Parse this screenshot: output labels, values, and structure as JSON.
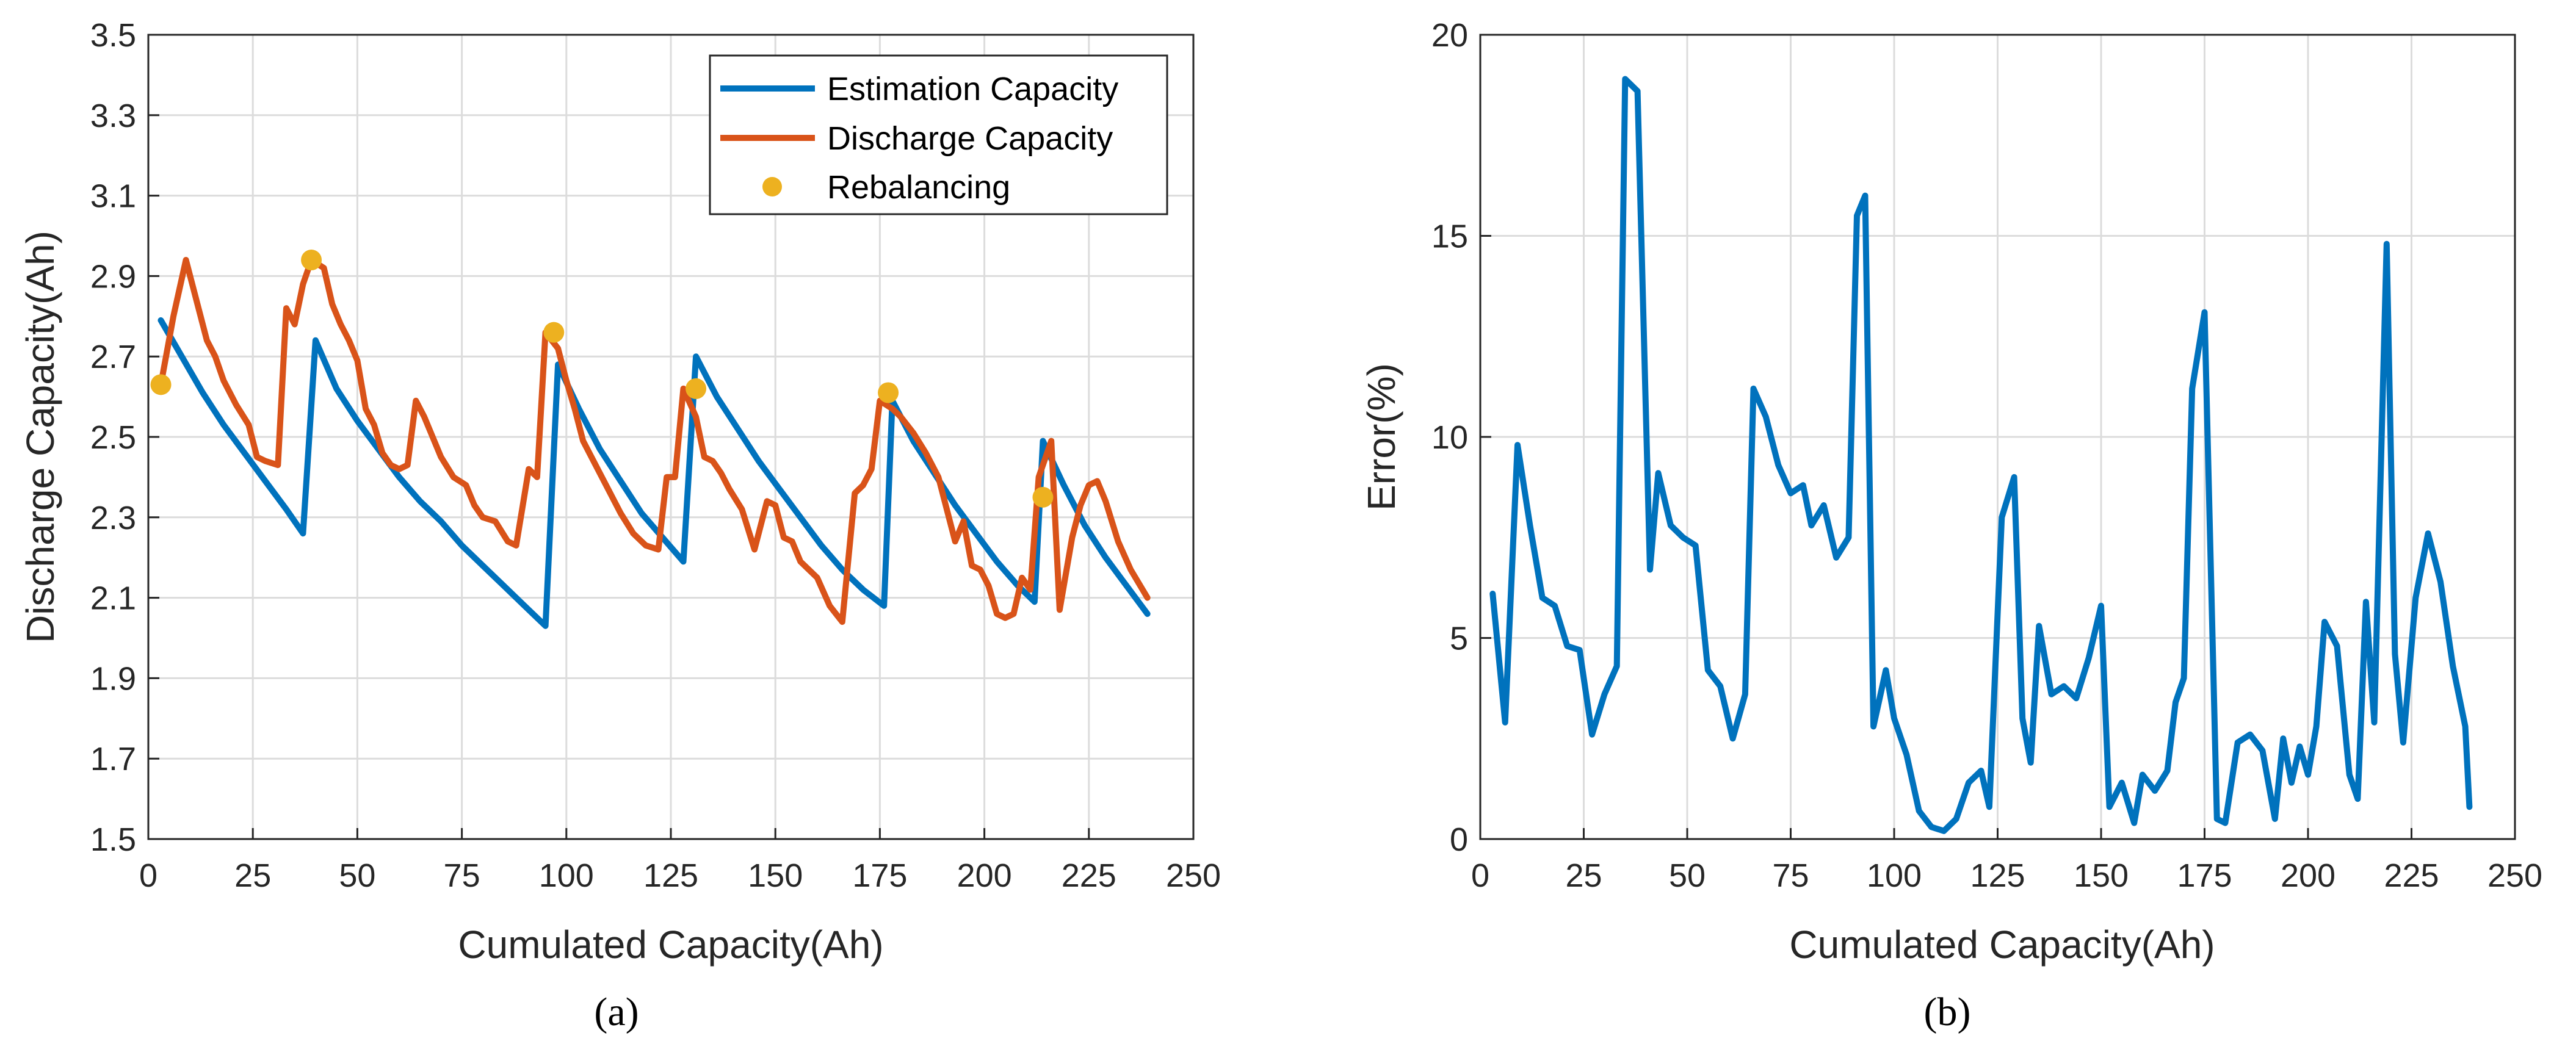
{
  "colors": {
    "estimation": "#0072BD",
    "discharge": "#D95319",
    "rebalancing": "#EDB120",
    "error": "#0072BD"
  },
  "chart_data": [
    {
      "type": "line",
      "caption": "(a)",
      "xlabel": "Cumulated Capacity(Ah)",
      "ylabel": "Discharge Capacity(Ah)",
      "xlim": [
        0,
        250
      ],
      "ylim": [
        1.5,
        3.5
      ],
      "xticks": [
        0,
        25,
        50,
        75,
        100,
        125,
        150,
        175,
        200,
        225,
        250
      ],
      "yticks": [
        1.5,
        1.7,
        1.9,
        2.1,
        2.3,
        2.5,
        2.7,
        2.9,
        3.1,
        3.3,
        3.5
      ],
      "legend_position": "top-right",
      "series": [
        {
          "name": "Estimation Capacity",
          "x": [
            3,
            8,
            13,
            18,
            23,
            28,
            33,
            37,
            40,
            45,
            50,
            55,
            60,
            65,
            70,
            75,
            80,
            85,
            90,
            95,
            98,
            103,
            108,
            113,
            118,
            123,
            128,
            131,
            136,
            141,
            146,
            151,
            156,
            161,
            166,
            171,
            176,
            178,
            183,
            188,
            193,
            198,
            203,
            208,
            212,
            214,
            219,
            224,
            229,
            234,
            239
          ],
          "y": [
            2.79,
            2.7,
            2.61,
            2.53,
            2.46,
            2.39,
            2.32,
            2.26,
            2.74,
            2.62,
            2.54,
            2.47,
            2.4,
            2.34,
            2.29,
            2.23,
            2.18,
            2.13,
            2.08,
            2.03,
            2.68,
            2.57,
            2.47,
            2.39,
            2.31,
            2.25,
            2.19,
            2.7,
            2.6,
            2.52,
            2.44,
            2.37,
            2.3,
            2.23,
            2.17,
            2.12,
            2.08,
            2.59,
            2.49,
            2.41,
            2.33,
            2.26,
            2.19,
            2.13,
            2.09,
            2.49,
            2.38,
            2.28,
            2.2,
            2.13,
            2.06
          ]
        },
        {
          "name": "Discharge Capacity",
          "x": [
            3,
            6,
            9,
            12,
            14,
            16,
            18,
            21,
            24,
            26,
            28,
            31,
            33,
            35,
            37,
            39,
            42,
            44,
            46,
            48,
            50,
            52,
            54,
            56,
            58,
            60,
            62,
            64,
            66,
            68,
            70,
            73,
            76,
            78,
            80,
            83,
            86,
            88,
            91,
            93,
            95,
            98,
            100,
            102,
            104,
            107,
            110,
            113,
            116,
            119,
            122,
            124,
            126,
            128,
            131,
            133,
            135,
            137,
            139,
            142,
            145,
            148,
            150,
            152,
            154,
            156,
            158,
            160,
            163,
            166,
            169,
            171,
            173,
            175,
            178,
            180,
            183,
            186,
            189,
            191,
            193,
            195,
            197,
            199,
            201,
            203,
            205,
            207,
            209,
            211,
            213,
            216,
            218,
            221,
            223,
            225,
            227,
            229,
            232,
            235,
            239
          ],
          "y": [
            2.63,
            2.8,
            2.94,
            2.82,
            2.74,
            2.7,
            2.64,
            2.58,
            2.53,
            2.45,
            2.44,
            2.43,
            2.82,
            2.78,
            2.88,
            2.94,
            2.92,
            2.83,
            2.78,
            2.74,
            2.69,
            2.57,
            2.53,
            2.46,
            2.43,
            2.42,
            2.43,
            2.59,
            2.55,
            2.5,
            2.45,
            2.4,
            2.38,
            2.33,
            2.3,
            2.29,
            2.24,
            2.23,
            2.42,
            2.4,
            2.76,
            2.72,
            2.64,
            2.57,
            2.49,
            2.43,
            2.37,
            2.31,
            2.26,
            2.23,
            2.22,
            2.4,
            2.4,
            2.62,
            2.55,
            2.45,
            2.44,
            2.41,
            2.37,
            2.32,
            2.22,
            2.34,
            2.33,
            2.25,
            2.24,
            2.19,
            2.17,
            2.15,
            2.08,
            2.04,
            2.36,
            2.38,
            2.42,
            2.59,
            2.57,
            2.55,
            2.51,
            2.46,
            2.4,
            2.32,
            2.24,
            2.29,
            2.18,
            2.17,
            2.13,
            2.06,
            2.05,
            2.06,
            2.15,
            2.12,
            2.4,
            2.49,
            2.07,
            2.25,
            2.33,
            2.38,
            2.39,
            2.34,
            2.24,
            2.17,
            2.1
          ]
        },
        {
          "name": "Rebalancing",
          "marker": "dot",
          "x": [
            3,
            39,
            97,
            131,
            177,
            214
          ],
          "y": [
            2.63,
            2.94,
            2.76,
            2.62,
            2.61,
            2.35
          ]
        }
      ]
    },
    {
      "type": "line",
      "caption": "(b)",
      "xlabel": "Cumulated Capacity(Ah)",
      "ylabel": "Error(%)",
      "xlim": [
        0,
        250
      ],
      "ylim": [
        0,
        20
      ],
      "xticks": [
        0,
        25,
        50,
        75,
        100,
        125,
        150,
        175,
        200,
        225,
        250
      ],
      "yticks": [
        0,
        5,
        10,
        15,
        20
      ],
      "series": [
        {
          "name": "Error",
          "x": [
            3,
            6,
            9,
            12,
            15,
            18,
            21,
            24,
            27,
            30,
            33,
            35,
            38,
            41,
            43,
            46,
            49,
            52,
            55,
            58,
            61,
            64,
            66,
            69,
            72,
            75,
            78,
            80,
            83,
            86,
            89,
            91,
            93,
            95,
            98,
            100,
            103,
            106,
            109,
            112,
            115,
            118,
            121,
            123,
            126,
            129,
            131,
            133,
            135,
            138,
            141,
            144,
            147,
            150,
            152,
            155,
            158,
            160,
            163,
            166,
            168,
            170,
            172,
            175,
            178,
            180,
            183,
            186,
            189,
            192,
            194,
            196,
            198,
            200,
            202,
            204,
            207,
            210,
            212,
            214,
            216,
            219,
            221,
            223,
            226,
            229,
            232,
            235,
            238,
            239
          ],
          "y": [
            6.1,
            2.9,
            9.8,
            7.8,
            6.0,
            5.8,
            4.8,
            4.7,
            2.6,
            3.6,
            4.3,
            18.9,
            18.6,
            6.7,
            9.1,
            7.8,
            7.5,
            7.3,
            4.2,
            3.8,
            2.5,
            3.6,
            11.2,
            10.5,
            9.3,
            8.6,
            8.8,
            7.8,
            8.3,
            7.0,
            7.5,
            15.5,
            16.0,
            2.8,
            4.2,
            3.0,
            2.1,
            0.7,
            0.3,
            0.2,
            0.5,
            1.4,
            1.7,
            0.8,
            8.0,
            9.0,
            3.0,
            1.9,
            5.3,
            3.6,
            3.8,
            3.5,
            4.5,
            5.8,
            0.8,
            1.4,
            0.4,
            1.6,
            1.2,
            1.7,
            3.4,
            4.0,
            11.2,
            13.1,
            0.5,
            0.4,
            2.4,
            2.6,
            2.2,
            0.5,
            2.5,
            1.4,
            2.3,
            1.6,
            2.8,
            5.4,
            4.8,
            1.6,
            1.0,
            5.9,
            2.9,
            14.8,
            4.6,
            2.4,
            6.0,
            7.6,
            6.4,
            4.3,
            2.8,
            0.8
          ]
        }
      ]
    }
  ]
}
